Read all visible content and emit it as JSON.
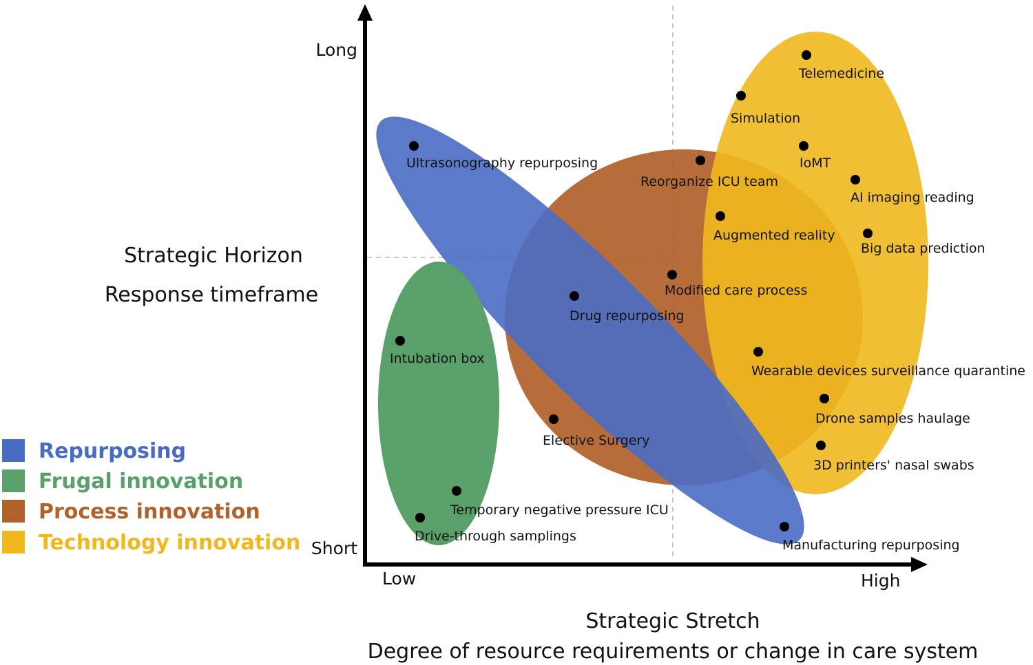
{
  "axes": {
    "y_title": "Strategic Horizon",
    "y_subtitle": "Response timeframe",
    "y_high": "Long",
    "y_low": "Short",
    "x_title": "Strategic Stretch",
    "x_subtitle": "Degree of resource requirements or change  in care system",
    "x_low": "Low",
    "x_high": "High"
  },
  "colors": {
    "repurposing": "#4a6bc4",
    "frugal": "#5aa06a",
    "process": "#b0622a",
    "technology": "#f0b81e"
  },
  "legend": [
    {
      "key": "repurposing",
      "label": "Repurposing"
    },
    {
      "key": "frugal",
      "label": "Frugal innovation"
    },
    {
      "key": "process",
      "label": "Process innovation"
    },
    {
      "key": "technology",
      "label": "Technology innovation"
    }
  ],
  "points": [
    {
      "label": "Telemedicine"
    },
    {
      "label": "Simulation"
    },
    {
      "label": "IoMT"
    },
    {
      "label": "AI imaging reading"
    },
    {
      "label": "Big data prediction"
    },
    {
      "label": "Augmented reality"
    },
    {
      "label": "Reorganize ICU team"
    },
    {
      "label": "Ultrasonography repurposing"
    },
    {
      "label": "Modified care process"
    },
    {
      "label": "Drug repurposing"
    },
    {
      "label": "Intubation box"
    },
    {
      "label": "Wearable devices  surveillance quarantine"
    },
    {
      "label": "Drone samples haulage"
    },
    {
      "label": "Elective Surgery"
    },
    {
      "label": "3D printers' nasal swabs"
    },
    {
      "label": "Temporary negative pressure ICU"
    },
    {
      "label": "Drive-through samplings"
    },
    {
      "label": "Manufacturing repurposing"
    }
  ]
}
